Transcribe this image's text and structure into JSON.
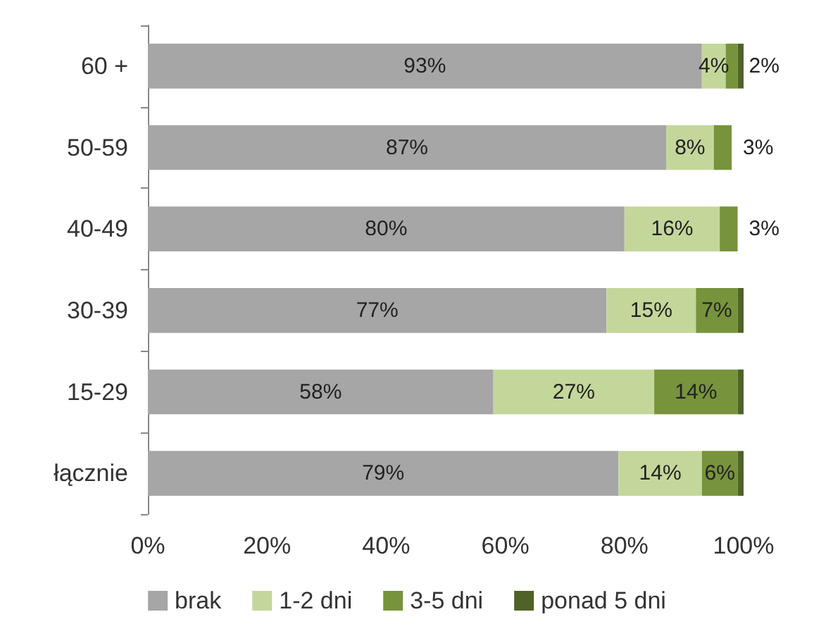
{
  "chart_data": {
    "type": "bar",
    "orientation": "horizontal",
    "stacked": true,
    "categories": [
      "60 +",
      "50-59",
      "40-49",
      "30-39",
      "15-29",
      "łącznie"
    ],
    "series": [
      {
        "name": "brak",
        "color": "#a6a6a6",
        "values": [
          93,
          87,
          80,
          77,
          58,
          79
        ],
        "value_labels": [
          "93%",
          "87%",
          "80%",
          "77%",
          "58%",
          "79%"
        ]
      },
      {
        "name": "1-2 dni",
        "color": "#c4d79b",
        "values": [
          4,
          8,
          16,
          15,
          27,
          14
        ],
        "value_labels": [
          "4%",
          "8%",
          "16%",
          "15%",
          "27%",
          "14%"
        ]
      },
      {
        "name": "3-5 dni",
        "color": "#77933c",
        "values": [
          2,
          3,
          3,
          7,
          14,
          6
        ],
        "value_labels": [
          "2%",
          "3%",
          "3%",
          "7%",
          "14%",
          "6%"
        ]
      },
      {
        "name": "ponad 5 dni",
        "color": "#4f6228",
        "values": [
          1,
          0,
          0,
          1,
          1,
          1
        ]
      }
    ],
    "xlim": [
      0,
      100
    ],
    "xticks": [
      {
        "value": 0,
        "label": "0%"
      },
      {
        "value": 20,
        "label": "20%"
      },
      {
        "value": 40,
        "label": "40%"
      },
      {
        "value": 60,
        "label": "60%"
      },
      {
        "value": 80,
        "label": "80%"
      },
      {
        "value": 100,
        "label": "100%"
      }
    ],
    "grid": false,
    "legend": "bottom"
  }
}
